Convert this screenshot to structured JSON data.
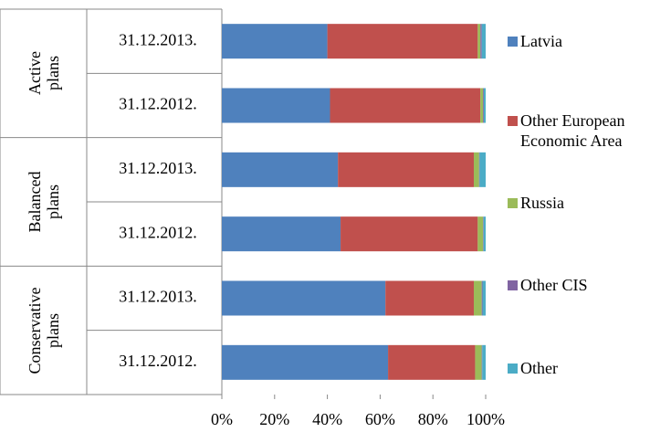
{
  "chart_data": {
    "type": "stacked-bar-horizontal",
    "groups": [
      {
        "name": "Active plans",
        "categories": [
          "31.12.2013.",
          "31.12.2012."
        ]
      },
      {
        "name": "Balanced plans",
        "categories": [
          "31.12.2013.",
          "31.12.2012."
        ]
      },
      {
        "name": "Conservative plans",
        "categories": [
          "31.12.2013.",
          "31.12.2012."
        ]
      }
    ],
    "series": [
      {
        "name": "Latvia",
        "color": "#4f81bd",
        "values": [
          40,
          41,
          44,
          45,
          62,
          63
        ]
      },
      {
        "name": "Other European Economic Area",
        "color": "#c0504d",
        "values": [
          57,
          57,
          51.5,
          52,
          33.5,
          33
        ]
      },
      {
        "name": "Russia",
        "color": "#9bbb59",
        "values": [
          1,
          1,
          2,
          2,
          3,
          2.5
        ]
      },
      {
        "name": "Other CIS",
        "color": "#8064a2",
        "values": [
          0.5,
          0.3,
          0.2,
          0.2,
          0.3,
          0.2
        ]
      },
      {
        "name": "Other",
        "color": "#4bacc6",
        "values": [
          1.5,
          0.7,
          2.3,
          0.8,
          1.2,
          1.3
        ]
      }
    ],
    "xlim": [
      0,
      100
    ],
    "xticks": [
      {
        "value": 0,
        "label": "0%"
      },
      {
        "value": 20,
        "label": "20%"
      },
      {
        "value": 40,
        "label": "40%"
      },
      {
        "value": 60,
        "label": "60%"
      },
      {
        "value": 80,
        "label": "80%"
      },
      {
        "value": 100,
        "label": "100%"
      }
    ],
    "legend": "right"
  }
}
